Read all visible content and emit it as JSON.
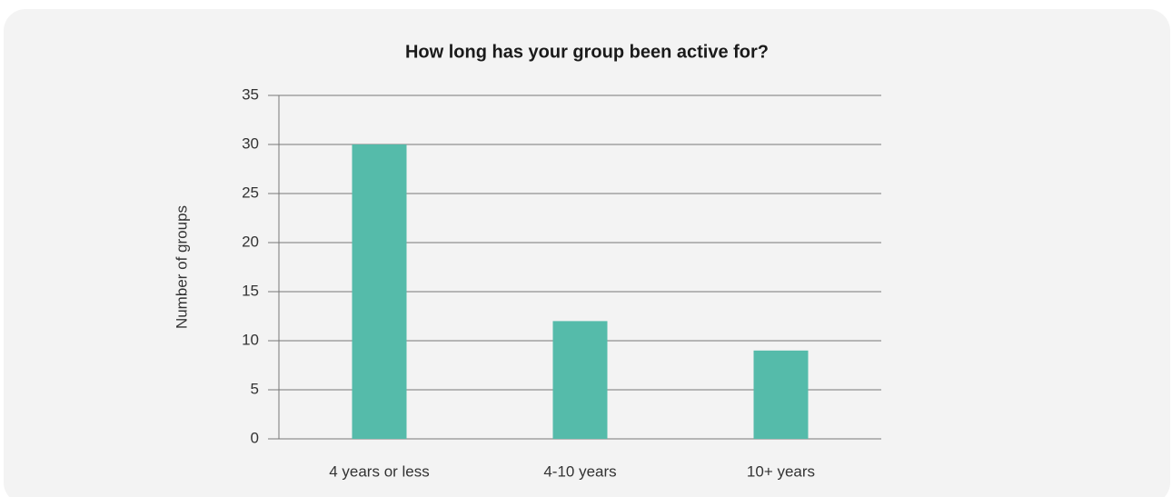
{
  "chart_data": {
    "type": "bar",
    "title": "How long has your group been active for?",
    "y_label": "Number of groups",
    "categories": [
      "4 years or less",
      "4-10 years",
      "10+ years"
    ],
    "values": [
      30,
      12,
      9
    ],
    "color": "#55bbaa",
    "ylim": [
      0,
      35
    ],
    "yticks": [
      0,
      5,
      10,
      15,
      20,
      25,
      30,
      35
    ],
    "grid": true
  }
}
